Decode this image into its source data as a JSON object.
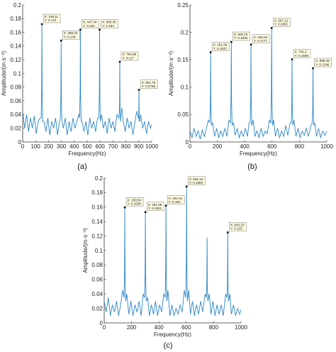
{
  "chart_data": [
    {
      "type": "line",
      "panel_label": "(a)",
      "xlabel": "Frequency(Hz)",
      "ylabel": "Amplitude/(m·s⁻²)",
      "xlim": [
        0,
        1000
      ],
      "ylim": [
        0,
        0.2
      ],
      "xticks": [
        "0",
        "100",
        "200",
        "300",
        "400",
        "500",
        "600",
        "700",
        "800",
        "900",
        "1000"
      ],
      "yticks": [
        "0",
        "0.02",
        "0.04",
        "0.06",
        "0.08",
        "0.1",
        "0.12",
        "0.14",
        "0.16",
        "0.18",
        "0.2"
      ],
      "color": "#2a86c6",
      "peaks": [
        {
          "x": 149.11,
          "y": 0.172,
          "label_x": "X: 149.11",
          "label_y": "Y: 0.172"
        },
        {
          "x": 298.22,
          "y": 0.148,
          "label_x": "X: 298.22",
          "label_y": "Y: 0.148"
        },
        {
          "x": 447.34,
          "y": 0.164,
          "label_x": "X: 447.34",
          "label_y": "Y: 0.164"
        },
        {
          "x": 596.45,
          "y": 0.164,
          "label_x": "X: 596.45",
          "label_y": "Y: 0.164"
        },
        {
          "x": 752.66,
          "y": 0.117,
          "label_x": "X: 752.66",
          "label_y": "Y: 0.117"
        },
        {
          "x": 901.78,
          "y": 0.0759,
          "label_x": "X: 901.78",
          "label_y": "Y: 0.0759"
        }
      ],
      "baseline_points": [
        [
          0,
          0.045
        ],
        [
          15,
          0.02
        ],
        [
          30,
          0.04
        ],
        [
          45,
          0.015
        ],
        [
          60,
          0.035
        ],
        [
          75,
          0.02
        ],
        [
          90,
          0.038
        ],
        [
          105,
          0.012
        ],
        [
          120,
          0.03
        ],
        [
          135,
          0.035
        ],
        [
          165,
          0.03
        ],
        [
          180,
          0.015
        ],
        [
          195,
          0.035
        ],
        [
          210,
          0.01
        ],
        [
          225,
          0.03
        ],
        [
          240,
          0.02
        ],
        [
          255,
          0.035
        ],
        [
          270,
          0.01
        ],
        [
          285,
          0.03
        ],
        [
          315,
          0.02
        ],
        [
          330,
          0.035
        ],
        [
          345,
          0.01
        ],
        [
          360,
          0.03
        ],
        [
          375,
          0.015
        ],
        [
          390,
          0.035
        ],
        [
          405,
          0.02
        ],
        [
          420,
          0.03
        ],
        [
          435,
          0.04
        ],
        [
          460,
          0.03
        ],
        [
          475,
          0.015
        ],
        [
          490,
          0.03
        ],
        [
          505,
          0.01
        ],
        [
          520,
          0.035
        ],
        [
          535,
          0.02
        ],
        [
          550,
          0.03
        ],
        [
          565,
          0.015
        ],
        [
          580,
          0.035
        ],
        [
          612,
          0.04
        ],
        [
          625,
          0.02
        ],
        [
          640,
          0.03
        ],
        [
          655,
          0.012
        ],
        [
          670,
          0.035
        ],
        [
          685,
          0.02
        ],
        [
          700,
          0.03
        ],
        [
          715,
          0.015
        ],
        [
          730,
          0.04
        ],
        [
          768,
          0.05
        ],
        [
          780,
          0.03
        ],
        [
          795,
          0.015
        ],
        [
          810,
          0.035
        ],
        [
          825,
          0.02
        ],
        [
          840,
          0.03
        ],
        [
          855,
          0.01
        ],
        [
          870,
          0.03
        ],
        [
          885,
          0.045
        ],
        [
          915,
          0.04
        ],
        [
          930,
          0.02
        ],
        [
          945,
          0.03
        ],
        [
          960,
          0.012
        ],
        [
          975,
          0.03
        ],
        [
          990,
          0.02
        ],
        [
          1000,
          0.025
        ]
      ]
    },
    {
      "type": "line",
      "panel_label": "(b)",
      "xlabel": "Frequency(Hz)",
      "ylabel": "Amplitude/(m·s⁻²)",
      "xlim": [
        0,
        1000
      ],
      "ylim": [
        0,
        0.25
      ],
      "xticks": [
        "0",
        "200",
        "400",
        "600",
        "800",
        "1000"
      ],
      "yticks": [
        "0",
        "0.05",
        "0.1",
        "0.15",
        "0.2",
        "0.25"
      ],
      "color": "#2a86c6",
      "peaks": [
        {
          "x": 151.06,
          "y": 0.1637,
          "label_x": "X: 151.06",
          "label_y": "Y: 0.1637"
        },
        {
          "x": 302.16,
          "y": 0.1826,
          "label_x": "X: 302.16",
          "label_y": "Y: 0.1826"
        },
        {
          "x": 446.04,
          "y": 0.1777,
          "label_x": "X: 446.04",
          "label_y": "Y: 0.1777"
        },
        {
          "x": 597.12,
          "y": 0.2081,
          "label_x": "X: 597.12",
          "label_y": "Y: 0.2081"
        },
        {
          "x": 746.2,
          "y": 0.1508,
          "label_x": "X: 746.2",
          "label_y": "Y: 0.1508"
        },
        {
          "x": 899.26,
          "y": 0.1346,
          "label_x": "X: 899.26",
          "label_y": "Y: 0.1346"
        }
      ],
      "baseline_points": [
        [
          0,
          0.02
        ],
        [
          15,
          0.008
        ],
        [
          30,
          0.025
        ],
        [
          45,
          0.01
        ],
        [
          60,
          0.02
        ],
        [
          75,
          0.005
        ],
        [
          90,
          0.022
        ],
        [
          105,
          0.01
        ],
        [
          120,
          0.025
        ],
        [
          135,
          0.04
        ],
        [
          165,
          0.035
        ],
        [
          180,
          0.01
        ],
        [
          195,
          0.025
        ],
        [
          210,
          0.008
        ],
        [
          225,
          0.02
        ],
        [
          240,
          0.01
        ],
        [
          255,
          0.025
        ],
        [
          270,
          0.01
        ],
        [
          285,
          0.04
        ],
        [
          318,
          0.035
        ],
        [
          330,
          0.012
        ],
        [
          345,
          0.025
        ],
        [
          360,
          0.008
        ],
        [
          375,
          0.02
        ],
        [
          390,
          0.01
        ],
        [
          405,
          0.025
        ],
        [
          420,
          0.01
        ],
        [
          432,
          0.035
        ],
        [
          462,
          0.04
        ],
        [
          475,
          0.01
        ],
        [
          490,
          0.02
        ],
        [
          505,
          0.008
        ],
        [
          520,
          0.025
        ],
        [
          535,
          0.01
        ],
        [
          550,
          0.02
        ],
        [
          565,
          0.015
        ],
        [
          580,
          0.04
        ],
        [
          612,
          0.04
        ],
        [
          625,
          0.01
        ],
        [
          640,
          0.025
        ],
        [
          655,
          0.008
        ],
        [
          670,
          0.02
        ],
        [
          685,
          0.01
        ],
        [
          700,
          0.03
        ],
        [
          715,
          0.012
        ],
        [
          732,
          0.035
        ],
        [
          760,
          0.04
        ],
        [
          775,
          0.01
        ],
        [
          790,
          0.025
        ],
        [
          805,
          0.008
        ],
        [
          820,
          0.02
        ],
        [
          835,
          0.012
        ],
        [
          850,
          0.025
        ],
        [
          865,
          0.01
        ],
        [
          885,
          0.03
        ],
        [
          912,
          0.035
        ],
        [
          925,
          0.01
        ],
        [
          940,
          0.025
        ],
        [
          955,
          0.008
        ],
        [
          970,
          0.02
        ],
        [
          985,
          0.012
        ],
        [
          1000,
          0.02
        ]
      ]
    },
    {
      "type": "line",
      "panel_label": "(c)",
      "xlabel": "Frequency(Hz)",
      "ylabel": "Amplitude/(m·s⁻²)",
      "xlim": [
        0,
        1000
      ],
      "ylim": [
        0,
        0.2
      ],
      "xticks": [
        "0",
        "200",
        "400",
        "600",
        "800",
        "1000"
      ],
      "yticks": [
        "0",
        "0.02",
        "0.04",
        "0.06",
        "0.08",
        "0.1",
        "0.12",
        "0.14",
        "0.16",
        "0.18",
        "0.2"
      ],
      "color": "#2a86c6",
      "peaks": [
        {
          "x": 150.54,
          "y": 0.1595,
          "label_x": "X: 150.54",
          "label_y": "Y: 0.1595"
        },
        {
          "x": 301.09,
          "y": 0.1531,
          "label_x": "X: 301.09",
          "label_y": "Y: 0.1531"
        },
        {
          "x": 451.61,
          "y": 0.162,
          "label_x": "X: 451.61",
          "label_y": "Y: 0.162"
        },
        {
          "x": 602.15,
          "y": 0.1884,
          "label_x": "X: 602.15",
          "label_y": "Y: 0.1884"
        },
        {
          "x": 903.23,
          "y": 0.125,
          "label_x": "X: 903.23",
          "label_y": "Y: 0.125"
        }
      ],
      "unlabeled_peaks": [
        {
          "x": 752,
          "y": 0.118
        }
      ],
      "baseline_points": [
        [
          0,
          0.03
        ],
        [
          15,
          0.015
        ],
        [
          30,
          0.035
        ],
        [
          45,
          0.01
        ],
        [
          60,
          0.025
        ],
        [
          75,
          0.015
        ],
        [
          90,
          0.03
        ],
        [
          105,
          0.01
        ],
        [
          120,
          0.025
        ],
        [
          135,
          0.045
        ],
        [
          165,
          0.04
        ],
        [
          180,
          0.012
        ],
        [
          195,
          0.03
        ],
        [
          210,
          0.01
        ],
        [
          225,
          0.025
        ],
        [
          240,
          0.015
        ],
        [
          255,
          0.03
        ],
        [
          270,
          0.01
        ],
        [
          285,
          0.04
        ],
        [
          318,
          0.035
        ],
        [
          330,
          0.01
        ],
        [
          345,
          0.025
        ],
        [
          360,
          0.012
        ],
        [
          375,
          0.03
        ],
        [
          390,
          0.01
        ],
        [
          405,
          0.025
        ],
        [
          420,
          0.015
        ],
        [
          435,
          0.04
        ],
        [
          466,
          0.045
        ],
        [
          480,
          0.01
        ],
        [
          495,
          0.025
        ],
        [
          510,
          0.01
        ],
        [
          525,
          0.02
        ],
        [
          540,
          0.012
        ],
        [
          555,
          0.025
        ],
        [
          570,
          0.015
        ],
        [
          585,
          0.045
        ],
        [
          618,
          0.045
        ],
        [
          630,
          0.012
        ],
        [
          645,
          0.03
        ],
        [
          660,
          0.01
        ],
        [
          675,
          0.025
        ],
        [
          690,
          0.012
        ],
        [
          705,
          0.03
        ],
        [
          720,
          0.015
        ],
        [
          738,
          0.04
        ],
        [
          768,
          0.04
        ],
        [
          780,
          0.012
        ],
        [
          795,
          0.03
        ],
        [
          810,
          0.01
        ],
        [
          825,
          0.025
        ],
        [
          840,
          0.012
        ],
        [
          855,
          0.025
        ],
        [
          870,
          0.01
        ],
        [
          888,
          0.04
        ],
        [
          918,
          0.04
        ],
        [
          930,
          0.012
        ],
        [
          945,
          0.025
        ],
        [
          960,
          0.01
        ],
        [
          975,
          0.02
        ],
        [
          990,
          0.012
        ],
        [
          1000,
          0.018
        ]
      ]
    }
  ]
}
